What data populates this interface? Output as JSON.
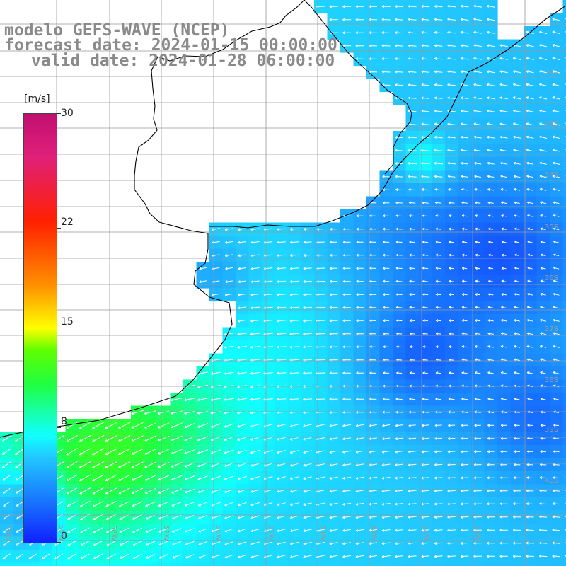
{
  "title": {
    "line1": "modelo GEFS-WAVE (NCEP)",
    "line2": "forecast date: 2024-01-15 00:00:00",
    "line3": "valid date: 2024-01-28 06:00:00"
  },
  "colorbar": {
    "units": "[m/s]",
    "min": 0,
    "max": 30,
    "ticks": [
      {
        "value": 30,
        "label": "30"
      },
      {
        "value": 22,
        "label": "22"
      },
      {
        "value": 15,
        "label": "15"
      },
      {
        "value": 8,
        "label": "8"
      },
      {
        "value": 0,
        "label": "0"
      }
    ]
  },
  "grid": {
    "lat_labels": [
      "32S",
      "33S",
      "34S",
      "35S",
      "36S",
      "37S",
      "38S",
      "39S",
      "40S"
    ],
    "lon_labels": [
      "60W",
      "59W",
      "58W",
      "57W",
      "56W",
      "55W",
      "54W",
      "53W",
      "52W",
      "51W"
    ]
  },
  "colors": {
    "land": "#ffffff",
    "grid": "#999999",
    "coast": "#000000",
    "arrows": "#ffffff"
  }
}
